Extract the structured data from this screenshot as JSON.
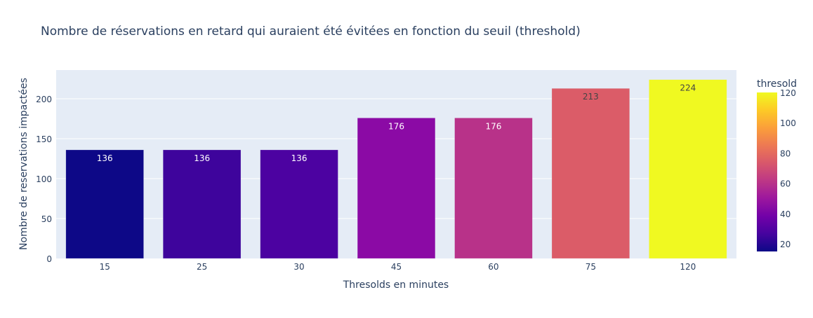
{
  "chart_data": {
    "type": "bar",
    "title": "Nombre de réservations en retard qui auraient été évitées en fonction du seuil (threshold)",
    "xlabel": "Thresolds en minutes",
    "ylabel": "Nombre de reservations impactées",
    "categories": [
      "15",
      "25",
      "30",
      "45",
      "60",
      "75",
      "120"
    ],
    "values": [
      136,
      136,
      136,
      176,
      176,
      213,
      224
    ],
    "color_values": [
      15,
      25,
      30,
      45,
      60,
      75,
      120
    ],
    "bar_colors": [
      "#0d0887",
      "#3e049c",
      "#4c02a1",
      "#8b0aa5",
      "#b83289",
      "#db5c68",
      "#f0f921"
    ],
    "label_colors": [
      "#ffffff",
      "#ffffff",
      "#ffffff",
      "#ffffff",
      "#ffffff",
      "#444444",
      "#444444"
    ],
    "ylim": [
      0,
      236
    ],
    "yticks": [
      0,
      50,
      100,
      150,
      200
    ],
    "grid": true,
    "colorbar": {
      "title": "thresold",
      "range": [
        15,
        120
      ],
      "ticks": [
        20,
        40,
        60,
        80,
        100,
        120
      ],
      "colorscale": [
        "#0d0887",
        "#46039f",
        "#7201a8",
        "#9c179e",
        "#bd3786",
        "#d8576b",
        "#ed7953",
        "#fb9f3a",
        "#fdca26",
        "#f0f921"
      ]
    },
    "legend_placement": "right"
  }
}
